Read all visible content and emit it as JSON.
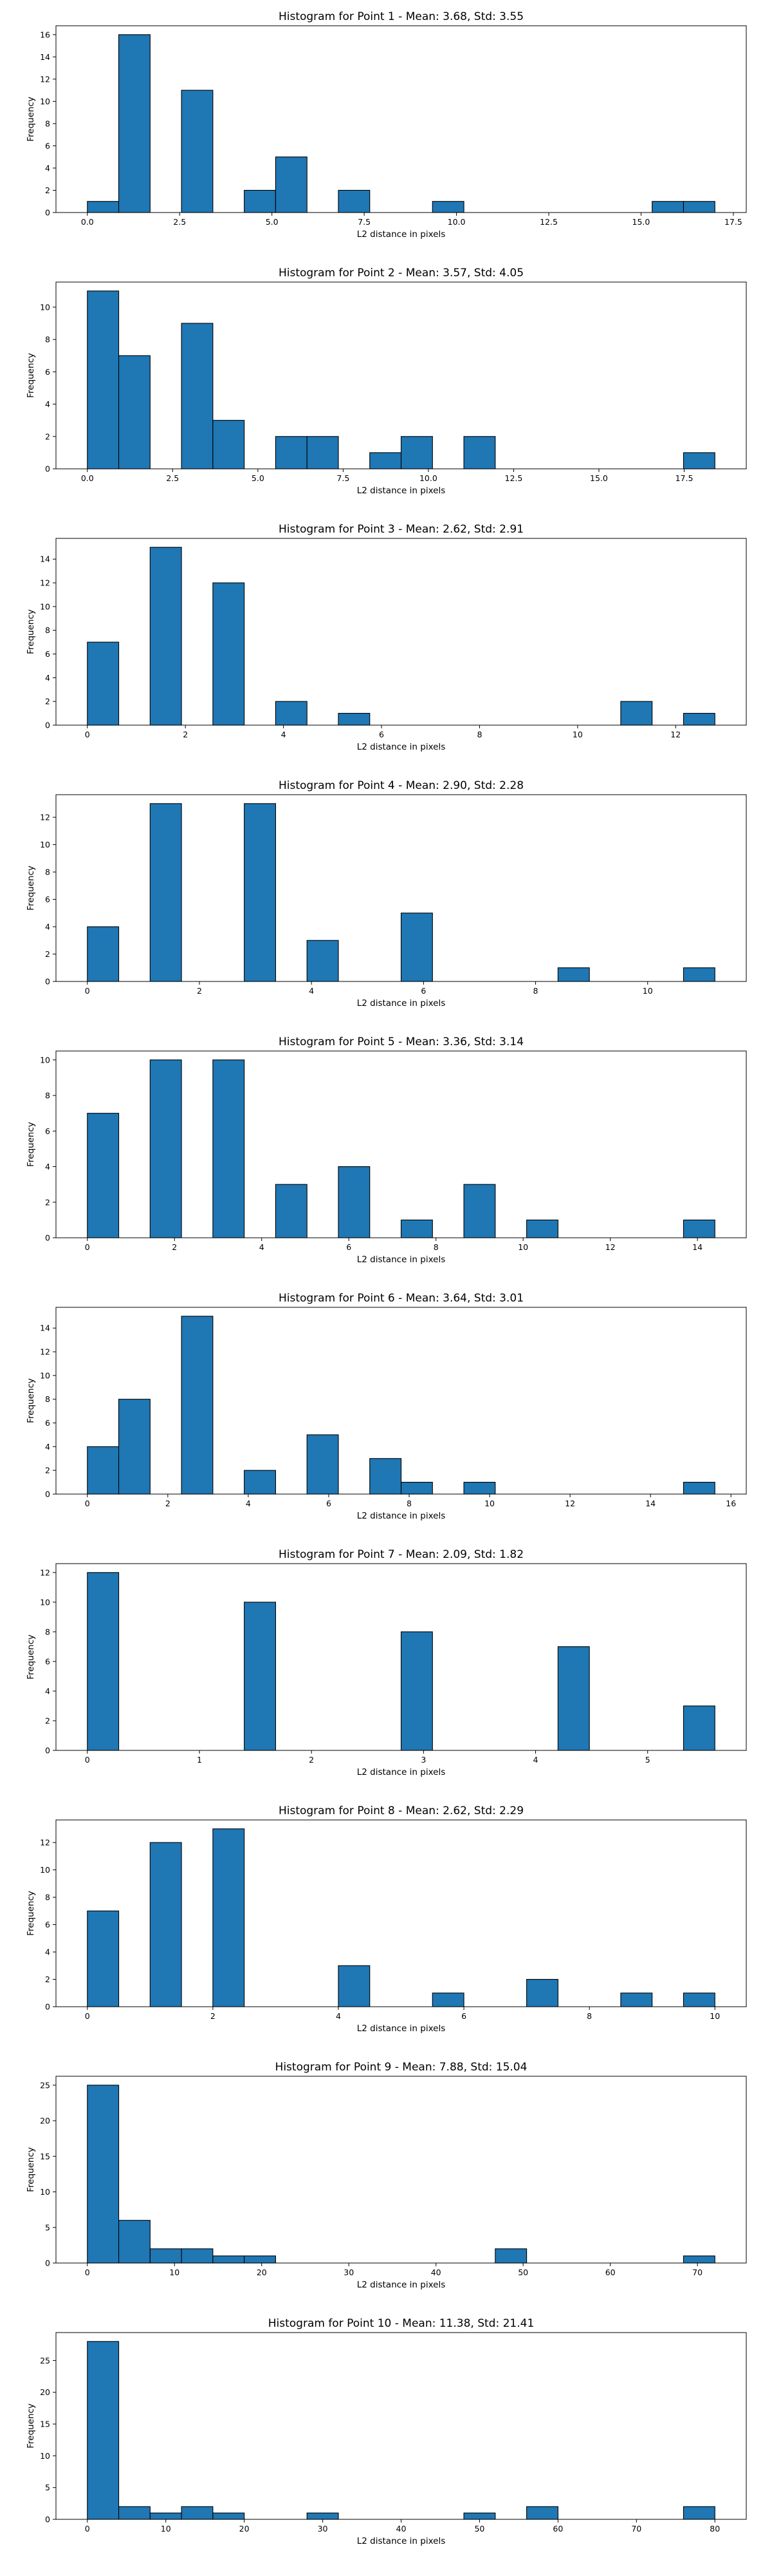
{
  "bar_color": "#1f77b4",
  "edge_color": "#000000",
  "chart_data": [
    {
      "type": "bar",
      "title": "Histogram for Point 1 - Mean: 3.68, Std: 3.55",
      "xlabel": "L2 distance in pixels",
      "ylabel": "Frequency",
      "xlim": [
        -0.85,
        17.85
      ],
      "ylim": [
        0,
        16.8
      ],
      "xticks": [
        0,
        2.5,
        5,
        7.5,
        10,
        12.5,
        15,
        17.5
      ],
      "xtick_labels": [
        "0.0",
        "2.5",
        "5.0",
        "7.5",
        "10.0",
        "12.5",
        "15.0",
        "17.5"
      ],
      "yticks": [
        0,
        2,
        4,
        6,
        8,
        10,
        12,
        14,
        16
      ],
      "bin_width": 0.85,
      "bin_starts": [
        0.0,
        0.85,
        2.55,
        4.25,
        5.1,
        6.8,
        9.35,
        15.3,
        16.15
      ],
      "values": [
        1,
        16,
        11,
        2,
        5,
        2,
        1,
        1,
        1
      ]
    },
    {
      "type": "bar",
      "title": "Histogram for Point 2 - Mean: 3.57, Std: 4.05",
      "xlabel": "L2 distance in pixels",
      "ylabel": "Frequency",
      "xlim": [
        -0.92,
        19.32
      ],
      "ylim": [
        0,
        11.55
      ],
      "xticks": [
        0,
        2.5,
        5,
        7.5,
        10,
        12.5,
        15,
        17.5
      ],
      "xtick_labels": [
        "0.0",
        "2.5",
        "5.0",
        "7.5",
        "10.0",
        "12.5",
        "15.0",
        "17.5"
      ],
      "yticks": [
        0,
        2,
        4,
        6,
        8,
        10
      ],
      "bin_width": 0.92,
      "bin_starts": [
        0.0,
        0.92,
        2.76,
        3.68,
        5.52,
        6.44,
        8.28,
        9.2,
        11.04,
        17.48
      ],
      "values": [
        11,
        7,
        9,
        3,
        2,
        2,
        1,
        2,
        2,
        1
      ]
    },
    {
      "type": "bar",
      "title": "Histogram for Point 3 - Mean: 2.62, Std: 2.91",
      "xlabel": "L2 distance in pixels",
      "ylabel": "Frequency",
      "xlim": [
        -0.64,
        13.44
      ],
      "ylim": [
        0,
        15.75
      ],
      "xticks": [
        0,
        2,
        4,
        6,
        8,
        10,
        12
      ],
      "xtick_labels": [
        "0",
        "2",
        "4",
        "6",
        "8",
        "10",
        "12"
      ],
      "yticks": [
        0,
        2,
        4,
        6,
        8,
        10,
        12,
        14
      ],
      "bin_width": 0.64,
      "bin_starts": [
        0.0,
        1.28,
        2.56,
        3.84,
        5.12,
        10.88,
        12.16
      ],
      "values": [
        7,
        15,
        12,
        2,
        1,
        2,
        1
      ]
    },
    {
      "type": "bar",
      "title": "Histogram for Point 4 - Mean: 2.90, Std: 2.28",
      "xlabel": "L2 distance in pixels",
      "ylabel": "Frequency",
      "xlim": [
        -0.56,
        11.76
      ],
      "ylim": [
        0,
        13.65
      ],
      "xticks": [
        0,
        2,
        4,
        6,
        8,
        10
      ],
      "xtick_labels": [
        "0",
        "2",
        "4",
        "6",
        "8",
        "10"
      ],
      "yticks": [
        0,
        2,
        4,
        6,
        8,
        10,
        12
      ],
      "bin_width": 0.56,
      "bin_starts": [
        0.0,
        1.12,
        2.8,
        3.92,
        5.6,
        8.4,
        10.64
      ],
      "values": [
        4,
        13,
        13,
        3,
        5,
        1,
        1
      ]
    },
    {
      "type": "bar",
      "title": "Histogram for Point 5 - Mean: 3.36, Std: 3.14",
      "xlabel": "L2 distance in pixels",
      "ylabel": "Frequency",
      "xlim": [
        -0.72,
        15.12
      ],
      "ylim": [
        0,
        10.5
      ],
      "xticks": [
        0,
        2,
        4,
        6,
        8,
        10,
        12,
        14
      ],
      "xtick_labels": [
        "0",
        "2",
        "4",
        "6",
        "8",
        "10",
        "12",
        "14"
      ],
      "yticks": [
        0,
        2,
        4,
        6,
        8,
        10
      ],
      "bin_width": 0.72,
      "bin_starts": [
        0.0,
        1.44,
        2.88,
        4.32,
        5.76,
        7.2,
        8.64,
        10.08,
        13.68
      ],
      "values": [
        7,
        10,
        10,
        3,
        4,
        1,
        3,
        1,
        1
      ]
    },
    {
      "type": "bar",
      "title": "Histogram for Point 6 - Mean: 3.64, Std: 3.01",
      "xlabel": "L2 distance in pixels",
      "ylabel": "Frequency",
      "xlim": [
        -0.78,
        16.38
      ],
      "ylim": [
        0,
        15.75
      ],
      "xticks": [
        0,
        2,
        4,
        6,
        8,
        10,
        12,
        14,
        16
      ],
      "xtick_labels": [
        "0",
        "2",
        "4",
        "6",
        "8",
        "10",
        "12",
        "14",
        "16"
      ],
      "yticks": [
        0,
        2,
        4,
        6,
        8,
        10,
        12,
        14
      ],
      "bin_width": 0.78,
      "bin_starts": [
        0.0,
        0.78,
        2.34,
        3.9,
        5.46,
        7.02,
        7.8,
        9.36,
        14.82
      ],
      "values": [
        4,
        8,
        15,
        2,
        5,
        3,
        1,
        1,
        1
      ]
    },
    {
      "type": "bar",
      "title": "Histogram for Point 7 - Mean: 2.09, Std: 1.82",
      "xlabel": "L2 distance in pixels",
      "ylabel": "Frequency",
      "xlim": [
        -0.28,
        5.88
      ],
      "ylim": [
        0,
        12.6
      ],
      "xticks": [
        0,
        1,
        2,
        3,
        4,
        5
      ],
      "xtick_labels": [
        "0",
        "1",
        "2",
        "3",
        "4",
        "5"
      ],
      "yticks": [
        0,
        2,
        4,
        6,
        8,
        10,
        12
      ],
      "bin_width": 0.28,
      "bin_starts": [
        0.0,
        1.4,
        2.8,
        4.2,
        5.32
      ],
      "values": [
        12,
        10,
        8,
        7,
        3
      ]
    },
    {
      "type": "bar",
      "title": "Histogram for Point 8 - Mean: 2.62, Std: 2.29",
      "xlabel": "L2 distance in pixels",
      "ylabel": "Frequency",
      "xlim": [
        -0.5,
        10.5
      ],
      "ylim": [
        0,
        13.65
      ],
      "xticks": [
        0,
        2,
        4,
        6,
        8,
        10
      ],
      "xtick_labels": [
        "0",
        "2",
        "4",
        "6",
        "8",
        "10"
      ],
      "yticks": [
        0,
        2,
        4,
        6,
        8,
        10,
        12
      ],
      "bin_width": 0.5,
      "bin_starts": [
        0.0,
        1.0,
        2.0,
        4.0,
        5.5,
        7.0,
        8.5,
        9.5
      ],
      "values": [
        7,
        12,
        13,
        3,
        1,
        2,
        1,
        1
      ]
    },
    {
      "type": "bar",
      "title": "Histogram for Point 9 - Mean: 7.88, Std: 15.04",
      "xlabel": "L2 distance in pixels",
      "ylabel": "Frequency",
      "xlim": [
        -3.6,
        75.6
      ],
      "ylim": [
        0,
        26.25
      ],
      "xticks": [
        0,
        10,
        20,
        30,
        40,
        50,
        60,
        70
      ],
      "xtick_labels": [
        "0",
        "10",
        "20",
        "30",
        "40",
        "50",
        "60",
        "70"
      ],
      "yticks": [
        0,
        5,
        10,
        15,
        20,
        25
      ],
      "bin_width": 3.6,
      "bin_starts": [
        0.0,
        3.6,
        7.2,
        10.8,
        14.4,
        18.0,
        46.8,
        68.4
      ],
      "values": [
        25,
        6,
        2,
        2,
        1,
        1,
        2,
        1
      ]
    },
    {
      "type": "bar",
      "title": "Histogram for Point 10 - Mean: 11.38, Std: 21.41",
      "xlabel": "L2 distance in pixels",
      "ylabel": "Frequency",
      "xlim": [
        -4.0,
        84.0
      ],
      "ylim": [
        0,
        29.4
      ],
      "xticks": [
        0,
        10,
        20,
        30,
        40,
        50,
        60,
        70,
        80
      ],
      "xtick_labels": [
        "0",
        "10",
        "20",
        "30",
        "40",
        "50",
        "60",
        "70",
        "80"
      ],
      "yticks": [
        0,
        5,
        10,
        15,
        20,
        25
      ],
      "bin_width": 4.0,
      "bin_starts": [
        0.0,
        4.0,
        8.0,
        12.0,
        16.0,
        28.0,
        48.0,
        56.0,
        76.0
      ],
      "values": [
        28,
        2,
        1,
        2,
        1,
        1,
        1,
        2,
        2
      ]
    }
  ]
}
